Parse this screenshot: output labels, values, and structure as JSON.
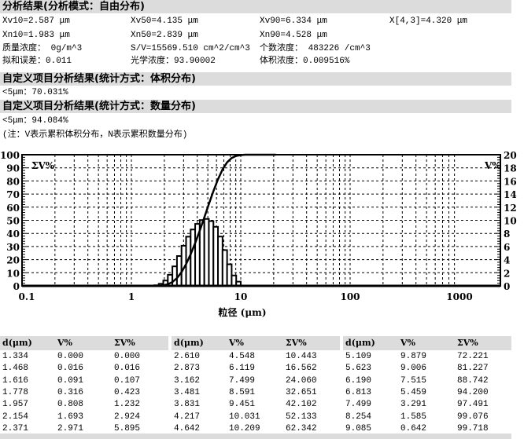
{
  "sections": {
    "main_title": "分析结果(分析模式：自由分布)",
    "custom_volume_title": "自定义项目分析结果(统计方式：体积分布)",
    "custom_number_title": "自定义项目分析结果(统计方式：数量分布)"
  },
  "stats": {
    "xv10": "Xv10=2.587 μm",
    "xv50": "Xv50=4.135 μm",
    "xv90": "Xv90=6.334 μm",
    "x43": "X[4,3]=4.320 μm",
    "xn10": "Xn10=1.983 μm",
    "xn50": "Xn50=2.839 μm",
    "xn90": "Xn90=4.528 μm",
    "mass_conc": "质量浓度： 0g/m^3",
    "sv": "S/V=15569.510 cm^2/cm^3",
    "number_conc": "个数浓度： 483226 /cm^3",
    "fit_error": "拟和误差：0.011",
    "optical_conc": "光学浓度：93.90002",
    "volume_conc": "体积浓度：0.009516%"
  },
  "custom_volume_value": "<5μm：70.031%",
  "custom_number_value": "<5μm：94.084%",
  "note": "(注：V表示累积体积分布，N表示累积数量分布)",
  "chart_data": {
    "type": "bar",
    "xlabel": "粒径 (μm)",
    "x_scale": "log",
    "xlim": [
      0.1,
      2400
    ],
    "x_ticks": [
      "0.1",
      "1",
      "10",
      "100",
      "1000"
    ],
    "y_left": {
      "label": "ΣV%",
      "lim": [
        0,
        100
      ],
      "ticks": [
        "0",
        "10",
        "20",
        "30",
        "40",
        "50",
        "60",
        "70",
        "80",
        "90",
        "100"
      ]
    },
    "y_right": {
      "label": "V%",
      "lim": [
        0,
        20
      ],
      "ticks": [
        "0",
        "2",
        "4",
        "6",
        "8",
        "10",
        "12",
        "14",
        "16",
        "18",
        "20"
      ]
    },
    "grid": true,
    "series": [
      {
        "name": "V%",
        "type": "bar",
        "axis": "right"
      },
      {
        "name": "ΣV%",
        "type": "line",
        "axis": "left"
      }
    ]
  },
  "table": {
    "headers": [
      "d(μm)",
      "V%",
      "ΣV%"
    ],
    "groups": [
      [
        [
          "1.334",
          "0.000",
          "0.000"
        ],
        [
          "1.468",
          "0.016",
          "0.016"
        ],
        [
          "1.616",
          "0.091",
          "0.107"
        ],
        [
          "1.778",
          "0.316",
          "0.423"
        ],
        [
          "1.957",
          "0.808",
          "1.232"
        ],
        [
          "2.154",
          "1.693",
          "2.924"
        ],
        [
          "2.371",
          "2.971",
          "5.895"
        ]
      ],
      [
        [
          "2.610",
          "4.548",
          "10.443"
        ],
        [
          "2.873",
          "6.119",
          "16.562"
        ],
        [
          "3.162",
          "7.499",
          "24.060"
        ],
        [
          "3.481",
          "8.591",
          "32.651"
        ],
        [
          "3.831",
          "9.451",
          "42.102"
        ],
        [
          "4.217",
          "10.031",
          "52.133"
        ],
        [
          "4.642",
          "10.209",
          "62.342"
        ]
      ],
      [
        [
          "5.109",
          "9.879",
          "72.221"
        ],
        [
          "5.623",
          "9.006",
          "81.227"
        ],
        [
          "6.190",
          "7.515",
          "88.742"
        ],
        [
          "6.813",
          "5.459",
          "94.200"
        ],
        [
          "7.499",
          "3.291",
          "97.491"
        ],
        [
          "8.254",
          "1.585",
          "99.076"
        ],
        [
          "9.085",
          "0.642",
          "99.718"
        ]
      ]
    ]
  }
}
